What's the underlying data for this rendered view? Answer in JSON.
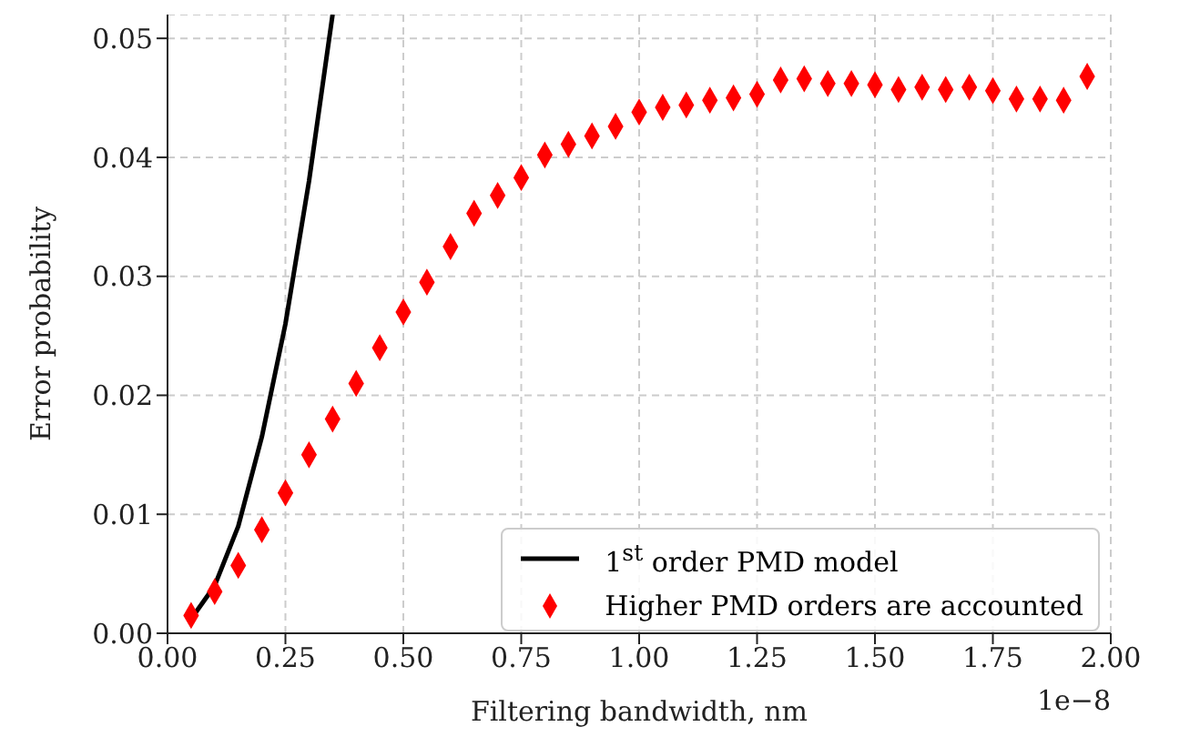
{
  "chart_data": {
    "type": "line",
    "xlabel": "Filtering bandwidth, nm",
    "ylabel": "Error probability",
    "annotations": [
      "1e−8"
    ],
    "xlim": [
      0,
      2
    ],
    "ylim": [
      0,
      0.052
    ],
    "xticks": [
      {
        "value": 0,
        "label": "0.00"
      },
      {
        "value": 0.25,
        "label": "0.25"
      },
      {
        "value": 0.5,
        "label": "0.50"
      },
      {
        "value": 0.75,
        "label": "0.75"
      },
      {
        "value": 1,
        "label": "1.00"
      },
      {
        "value": 1.25,
        "label": "1.25"
      },
      {
        "value": 1.5,
        "label": "1.50"
      },
      {
        "value": 1.75,
        "label": "1.75"
      },
      {
        "value": 2,
        "label": "2.00"
      }
    ],
    "yticks": [
      {
        "value": 0,
        "label": "0.00"
      },
      {
        "value": 0.01,
        "label": "0.01"
      },
      {
        "value": 0.02,
        "label": "0.02"
      },
      {
        "value": 0.03,
        "label": "0.03"
      },
      {
        "value": 0.04,
        "label": "0.04"
      },
      {
        "value": 0.05,
        "label": "0.05"
      }
    ],
    "grid": true,
    "legend": "bottom right",
    "series": [
      {
        "name": "1$^{st}$ order PMD model",
        "color": "#000000",
        "marker": "none",
        "line_style": "solid",
        "x": [
          0.05,
          0.1,
          0.15,
          0.2,
          0.25,
          0.3,
          0.35
        ],
        "values": [
          0.0012,
          0.004,
          0.009,
          0.0165,
          0.026,
          0.038,
          0.052
        ]
      },
      {
        "name": "Higher PMD orders are accounted",
        "type": "scatter",
        "color": "#ff0000",
        "marker": "diamond",
        "x": [
          0.05,
          0.1,
          0.15,
          0.2,
          0.25,
          0.3,
          0.35,
          0.4,
          0.45,
          0.5,
          0.55,
          0.6,
          0.65,
          0.7,
          0.75,
          0.8,
          0.85,
          0.9,
          0.95,
          1.0,
          1.05,
          1.1,
          1.15,
          1.2,
          1.25,
          1.3,
          1.35,
          1.4,
          1.45,
          1.5,
          1.55,
          1.6,
          1.65,
          1.7,
          1.75,
          1.8,
          1.85,
          1.9,
          1.95
        ],
        "values": [
          0.0015,
          0.0035,
          0.0057,
          0.0087,
          0.0118,
          0.015,
          0.018,
          0.021,
          0.024,
          0.027,
          0.0295,
          0.0325,
          0.0353,
          0.0368,
          0.0383,
          0.0402,
          0.0411,
          0.0418,
          0.0426,
          0.0438,
          0.0442,
          0.0444,
          0.0448,
          0.045,
          0.0453,
          0.0465,
          0.0466,
          0.0462,
          0.0462,
          0.0461,
          0.0457,
          0.0459,
          0.0457,
          0.0459,
          0.0456,
          0.0449,
          0.0449,
          0.0448,
          0.0468
        ]
      }
    ]
  }
}
